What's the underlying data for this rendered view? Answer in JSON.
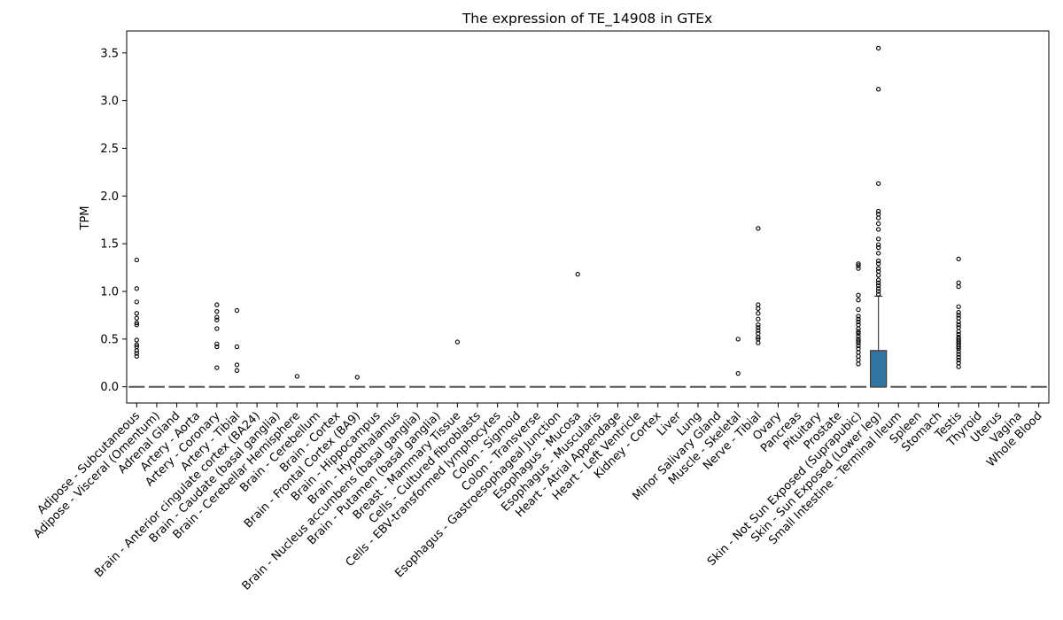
{
  "chart_data": {
    "type": "box",
    "title": "The expression of TE_14908 in GTEx",
    "xlabel": "",
    "ylabel": "TPM",
    "ylim": [
      -0.17,
      3.73
    ],
    "yticks": [
      0.0,
      0.5,
      1.0,
      1.5,
      2.0,
      2.5,
      3.0,
      3.5
    ],
    "ytick_labels": [
      "0.0",
      "0.5",
      "1.0",
      "1.5",
      "2.0",
      "2.5",
      "3.0",
      "3.5"
    ],
    "grid": false,
    "legend": "none",
    "box_color": "#3274a1",
    "median_color": "#555555",
    "categories": [
      "Adipose - Subcutaneous",
      "Adipose - Visceral (Omentum)",
      "Adrenal Gland",
      "Artery - Aorta",
      "Artery - Coronary",
      "Artery - Tibial",
      "Brain - Anterior cingulate cortex (BA24)",
      "Brain - Caudate (basal ganglia)",
      "Brain - Cerebellar Hemisphere",
      "Brain - Cerebellum",
      "Brain - Cortex",
      "Brain - Frontal Cortex (BA9)",
      "Brain - Hippocampus",
      "Brain - Hypothalamus",
      "Brain - Nucleus accumbens (basal ganglia)",
      "Brain - Putamen (basal ganglia)",
      "Breast - Mammary Tissue",
      "Cells - Cultured fibroblasts",
      "Cells - EBV-transformed lymphocytes",
      "Colon - Sigmoid",
      "Colon - Transverse",
      "Esophagus - Gastroesophageal Junction",
      "Esophagus - Mucosa",
      "Esophagus - Muscularis",
      "Heart - Atrial Appendage",
      "Heart - Left Ventricle",
      "Kidney - Cortex",
      "Liver",
      "Lung",
      "Minor Salivary Gland",
      "Muscle - Skeletal",
      "Nerve - Tibial",
      "Ovary",
      "Pancreas",
      "Pituitary",
      "Prostate",
      "Skin - Not Sun Exposed (Suprapubic)",
      "Skin - Sun Exposed (Lower leg)",
      "Small Intestine - Terminal Ileum",
      "Spleen",
      "Stomach",
      "Testis",
      "Thyroid",
      "Uterus",
      "Vagina",
      "Whole Blood"
    ],
    "boxes": [
      {
        "q1": 0,
        "median": 0,
        "q3": 0,
        "whislo": 0,
        "whishi": 0,
        "fliers": [
          1.33,
          1.03,
          0.89,
          0.77,
          0.72,
          0.67,
          0.65,
          0.49,
          0.44,
          0.42,
          0.38,
          0.35,
          0.32
        ]
      },
      {
        "q1": 0,
        "median": 0,
        "q3": 0,
        "whislo": 0,
        "whishi": 0,
        "fliers": []
      },
      {
        "q1": 0,
        "median": 0,
        "q3": 0,
        "whislo": 0,
        "whishi": 0,
        "fliers": []
      },
      {
        "q1": 0,
        "median": 0,
        "q3": 0,
        "whislo": 0,
        "whishi": 0,
        "fliers": []
      },
      {
        "q1": 0,
        "median": 0,
        "q3": 0,
        "whislo": 0,
        "whishi": 0,
        "fliers": [
          0.86,
          0.79,
          0.73,
          0.7,
          0.61,
          0.45,
          0.42,
          0.2
        ]
      },
      {
        "q1": 0,
        "median": 0,
        "q3": 0,
        "whislo": 0,
        "whishi": 0,
        "fliers": [
          0.8,
          0.42,
          0.23,
          0.17
        ]
      },
      {
        "q1": 0,
        "median": 0,
        "q3": 0,
        "whislo": 0,
        "whishi": 0,
        "fliers": []
      },
      {
        "q1": 0,
        "median": 0,
        "q3": 0,
        "whislo": 0,
        "whishi": 0,
        "fliers": []
      },
      {
        "q1": 0,
        "median": 0,
        "q3": 0,
        "whislo": 0,
        "whishi": 0,
        "fliers": [
          0.11
        ]
      },
      {
        "q1": 0,
        "median": 0,
        "q3": 0,
        "whislo": 0,
        "whishi": 0,
        "fliers": []
      },
      {
        "q1": 0,
        "median": 0,
        "q3": 0,
        "whislo": 0,
        "whishi": 0,
        "fliers": []
      },
      {
        "q1": 0,
        "median": 0,
        "q3": 0,
        "whislo": 0,
        "whishi": 0,
        "fliers": [
          0.1
        ]
      },
      {
        "q1": 0,
        "median": 0,
        "q3": 0,
        "whislo": 0,
        "whishi": 0,
        "fliers": []
      },
      {
        "q1": 0,
        "median": 0,
        "q3": 0,
        "whislo": 0,
        "whishi": 0,
        "fliers": []
      },
      {
        "q1": 0,
        "median": 0,
        "q3": 0,
        "whislo": 0,
        "whishi": 0,
        "fliers": []
      },
      {
        "q1": 0,
        "median": 0,
        "q3": 0,
        "whislo": 0,
        "whishi": 0,
        "fliers": []
      },
      {
        "q1": 0,
        "median": 0,
        "q3": 0,
        "whislo": 0,
        "whishi": 0,
        "fliers": [
          0.47
        ]
      },
      {
        "q1": 0,
        "median": 0,
        "q3": 0,
        "whislo": 0,
        "whishi": 0,
        "fliers": []
      },
      {
        "q1": 0,
        "median": 0,
        "q3": 0,
        "whislo": 0,
        "whishi": 0,
        "fliers": []
      },
      {
        "q1": 0,
        "median": 0,
        "q3": 0,
        "whislo": 0,
        "whishi": 0,
        "fliers": []
      },
      {
        "q1": 0,
        "median": 0,
        "q3": 0,
        "whislo": 0,
        "whishi": 0,
        "fliers": []
      },
      {
        "q1": 0,
        "median": 0,
        "q3": 0,
        "whislo": 0,
        "whishi": 0,
        "fliers": []
      },
      {
        "q1": 0,
        "median": 0,
        "q3": 0,
        "whislo": 0,
        "whishi": 0,
        "fliers": [
          1.18
        ]
      },
      {
        "q1": 0,
        "median": 0,
        "q3": 0,
        "whislo": 0,
        "whishi": 0,
        "fliers": []
      },
      {
        "q1": 0,
        "median": 0,
        "q3": 0,
        "whislo": 0,
        "whishi": 0,
        "fliers": []
      },
      {
        "q1": 0,
        "median": 0,
        "q3": 0,
        "whislo": 0,
        "whishi": 0,
        "fliers": []
      },
      {
        "q1": 0,
        "median": 0,
        "q3": 0,
        "whislo": 0,
        "whishi": 0,
        "fliers": []
      },
      {
        "q1": 0,
        "median": 0,
        "q3": 0,
        "whislo": 0,
        "whishi": 0,
        "fliers": []
      },
      {
        "q1": 0,
        "median": 0,
        "q3": 0,
        "whislo": 0,
        "whishi": 0,
        "fliers": []
      },
      {
        "q1": 0,
        "median": 0,
        "q3": 0,
        "whislo": 0,
        "whishi": 0,
        "fliers": []
      },
      {
        "q1": 0,
        "median": 0,
        "q3": 0,
        "whislo": 0,
        "whishi": 0,
        "fliers": [
          0.5,
          0.14
        ]
      },
      {
        "q1": 0,
        "median": 0,
        "q3": 0,
        "whislo": 0,
        "whishi": 0,
        "fliers": [
          1.66,
          0.86,
          0.82,
          0.77,
          0.71,
          0.65,
          0.62,
          0.59,
          0.56,
          0.52,
          0.5,
          0.46
        ]
      },
      {
        "q1": 0,
        "median": 0,
        "q3": 0,
        "whislo": 0,
        "whishi": 0,
        "fliers": []
      },
      {
        "q1": 0,
        "median": 0,
        "q3": 0,
        "whislo": 0,
        "whishi": 0,
        "fliers": []
      },
      {
        "q1": 0,
        "median": 0,
        "q3": 0,
        "whislo": 0,
        "whishi": 0,
        "fliers": []
      },
      {
        "q1": 0,
        "median": 0,
        "q3": 0,
        "whislo": 0,
        "whishi": 0,
        "fliers": []
      },
      {
        "q1": 0,
        "median": 0,
        "q3": 0,
        "whislo": 0,
        "whishi": 0,
        "fliers": [
          1.29,
          1.27,
          1.24,
          0.96,
          0.91,
          0.81,
          0.74,
          0.71,
          0.68,
          0.65,
          0.61,
          0.58,
          0.56,
          0.53,
          0.5,
          0.48,
          0.46,
          0.43,
          0.4,
          0.36,
          0.32,
          0.28,
          0.24
        ]
      },
      {
        "q1": 0,
        "median": 0,
        "q3": 0.38,
        "whislo": 0,
        "whishi": 0.95,
        "fliers": [
          3.55,
          3.12,
          2.13,
          1.84,
          1.81,
          1.77,
          1.71,
          1.65,
          1.55,
          1.49,
          1.46,
          1.4,
          1.32,
          1.29,
          1.24,
          1.21,
          1.17,
          1.12,
          1.09,
          1.06,
          1.03,
          1.0,
          0.97
        ]
      },
      {
        "q1": 0,
        "median": 0,
        "q3": 0,
        "whislo": 0,
        "whishi": 0,
        "fliers": []
      },
      {
        "q1": 0,
        "median": 0,
        "q3": 0,
        "whislo": 0,
        "whishi": 0,
        "fliers": []
      },
      {
        "q1": 0,
        "median": 0,
        "q3": 0,
        "whislo": 0,
        "whishi": 0,
        "fliers": []
      },
      {
        "q1": 0,
        "median": 0,
        "q3": 0,
        "whislo": 0,
        "whishi": 0,
        "fliers": [
          1.34,
          1.09,
          1.05,
          0.84,
          0.78,
          0.75,
          0.72,
          0.68,
          0.65,
          0.62,
          0.58,
          0.55,
          0.52,
          0.5,
          0.48,
          0.46,
          0.44,
          0.42,
          0.4,
          0.37,
          0.34,
          0.31,
          0.28,
          0.25,
          0.21
        ]
      },
      {
        "q1": 0,
        "median": 0,
        "q3": 0,
        "whislo": 0,
        "whishi": 0,
        "fliers": []
      },
      {
        "q1": 0,
        "median": 0,
        "q3": 0,
        "whislo": 0,
        "whishi": 0,
        "fliers": []
      },
      {
        "q1": 0,
        "median": 0,
        "q3": 0,
        "whislo": 0,
        "whishi": 0,
        "fliers": []
      },
      {
        "q1": 0,
        "median": 0,
        "q3": 0,
        "whislo": 0,
        "whishi": 0,
        "fliers": []
      }
    ]
  }
}
